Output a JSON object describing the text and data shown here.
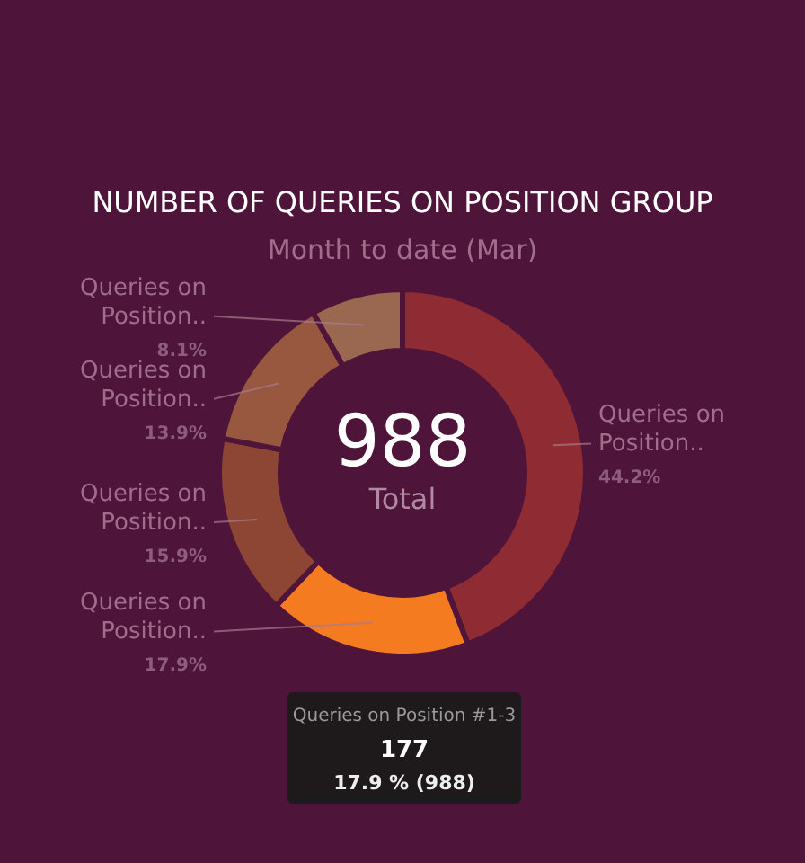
{
  "chart_data": {
    "type": "donut",
    "title": "NUMBER OF QUERIES ON POSITION GROUP",
    "subtitle": "Month to date (Mar)",
    "categories": [
      "Queries on Position..",
      "Queries on Position..",
      "Queries on Position..",
      "Queries on Position..",
      "Queries on Position.."
    ],
    "values": [
      44.2,
      17.9,
      15.9,
      13.9,
      8.1
    ],
    "value_labels": [
      "44.2%",
      "17.9%",
      "15.9%",
      "13.9%",
      "8.1%"
    ],
    "colors": [
      "#8e2b33",
      "#f47b20",
      "#8d4534",
      "#98573f",
      "#9a6751"
    ],
    "annotations": [
      "988",
      "Total",
      "Queries on Position #1-3",
      "177",
      "17.9 % (988)"
    ]
  }
}
